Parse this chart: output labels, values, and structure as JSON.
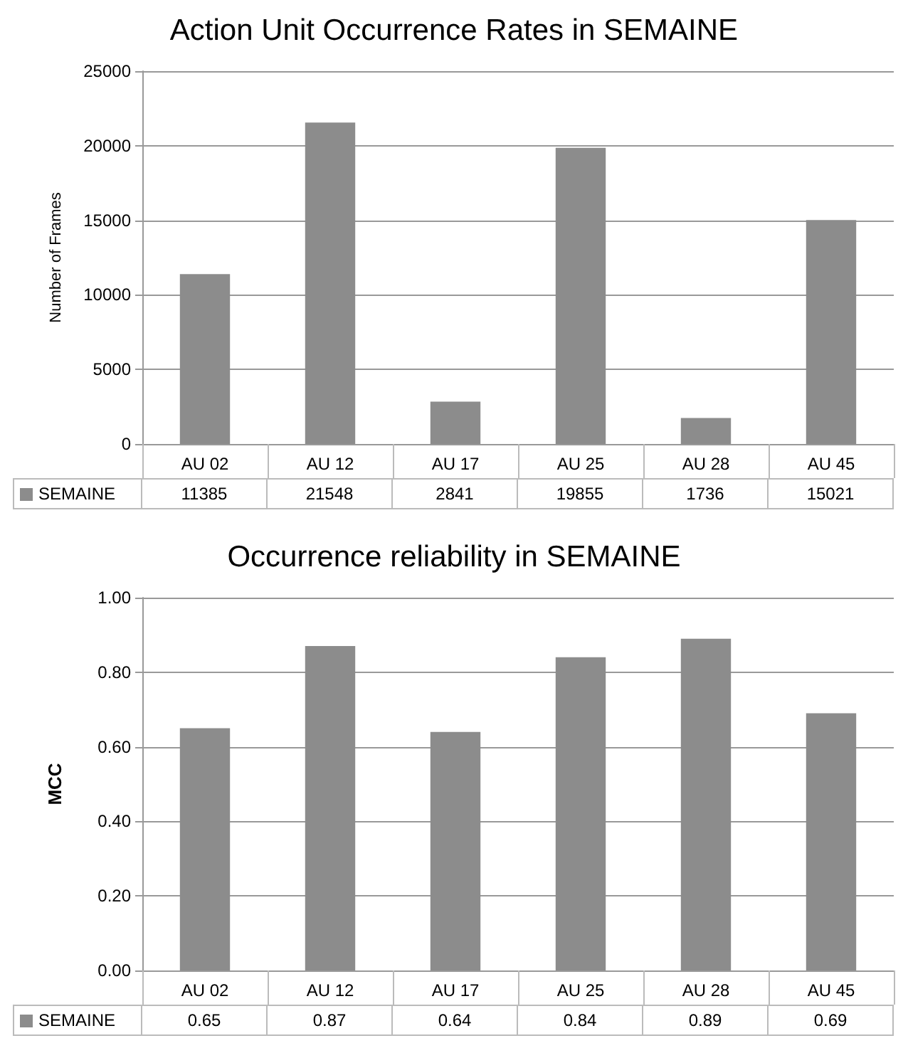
{
  "chart_data": [
    {
      "type": "bar",
      "title": "Action Unit Occurrence Rates in SEMAINE",
      "ylabel": "Number of Frames",
      "categories": [
        "AU 02",
        "AU 12",
        "AU 17",
        "AU 25",
        "AU 28",
        "AU 45"
      ],
      "series": [
        {
          "name": "SEMAINE",
          "color": "#8c8c8c",
          "values": [
            11385,
            21548,
            2841,
            19855,
            1736,
            15021
          ]
        }
      ],
      "ylim": [
        0,
        25000
      ],
      "yticks": [
        0,
        5000,
        10000,
        15000,
        20000,
        25000
      ],
      "grid": "y",
      "legend": "bottom",
      "data_labels": true
    },
    {
      "type": "bar",
      "title": "Occurrence reliability in SEMAINE",
      "ylabel": "MCC",
      "categories": [
        "AU 02",
        "AU 12",
        "AU 17",
        "AU 25",
        "AU 28",
        "AU 45"
      ],
      "series": [
        {
          "name": "SEMAINE",
          "color": "#8c8c8c",
          "values": [
            0.65,
            0.87,
            0.64,
            0.84,
            0.89,
            0.69
          ]
        }
      ],
      "ylim": [
        0,
        1
      ],
      "yticks": [
        {
          "value": 0,
          "label": "0.00"
        },
        {
          "value": 0.2,
          "label": "0.20"
        },
        {
          "value": 0.4,
          "label": "0.40"
        },
        {
          "value": 0.6,
          "label": "0.60"
        },
        {
          "value": 0.8,
          "label": "0.80"
        },
        {
          "value": 1,
          "label": "1.00"
        }
      ],
      "grid": "y",
      "legend": "bottom",
      "data_labels": true
    }
  ]
}
